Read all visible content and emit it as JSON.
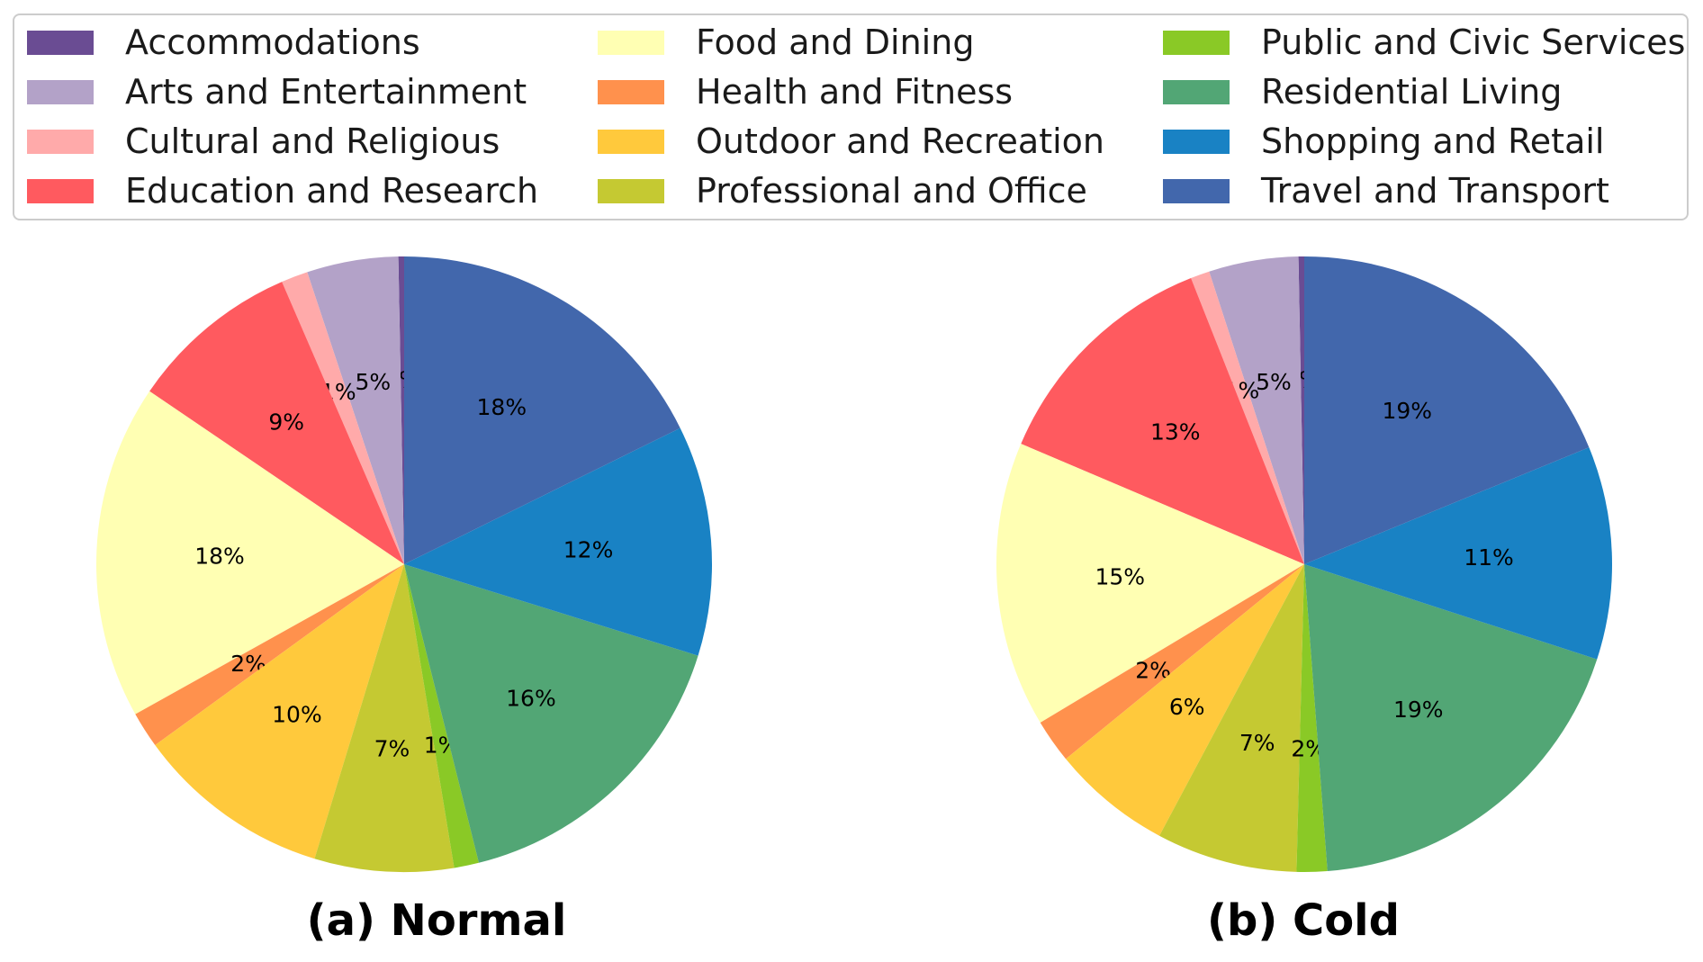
{
  "legend": [
    {
      "label": "Accommodations",
      "color": "#6a4c93"
    },
    {
      "label": "Arts and Entertainment",
      "color": "#b3a2c8"
    },
    {
      "label": "Cultural and Religious",
      "color": "#ffaaaa"
    },
    {
      "label": "Education and Research",
      "color": "#ff5a5f"
    },
    {
      "label": "Food and Dining",
      "color": "#ffffb3"
    },
    {
      "label": "Health and Fitness",
      "color": "#ff914d"
    },
    {
      "label": "Outdoor and Recreation",
      "color": "#ffc93c"
    },
    {
      "label": "Professional and Office",
      "color": "#c5c932"
    },
    {
      "label": "Public and Civic Services",
      "color": "#8ac926"
    },
    {
      "label": "Residential Living",
      "color": "#52a675"
    },
    {
      "label": "Shopping and Retail",
      "color": "#1982c4"
    },
    {
      "label": "Travel and Transport",
      "color": "#4267ac"
    }
  ],
  "chart_data": [
    {
      "type": "pie",
      "title": "(a) Normal",
      "order": "counterclockwise from top",
      "slices": [
        {
          "label": "Accommodations",
          "value": 0.3,
          "text": "0%"
        },
        {
          "label": "Arts and Entertainment",
          "value": 4.8,
          "text": "5%"
        },
        {
          "label": "Cultural and Religious",
          "value": 1.4,
          "text": "1%"
        },
        {
          "label": "Education and Research",
          "value": 9.0,
          "text": "9%"
        },
        {
          "label": "Food and Dining",
          "value": 17.6,
          "text": "18%"
        },
        {
          "label": "Health and Fitness",
          "value": 1.9,
          "text": "2%"
        },
        {
          "label": "Outdoor and Recreation",
          "value": 10.3,
          "text": "10%"
        },
        {
          "label": "Professional and Office",
          "value": 7.3,
          "text": "7%"
        },
        {
          "label": "Public and Civic Services",
          "value": 1.3,
          "text": "1%"
        },
        {
          "label": "Residential Living",
          "value": 16.3,
          "text": "16%"
        },
        {
          "label": "Shopping and Retail",
          "value": 12.1,
          "text": "12%"
        },
        {
          "label": "Travel and Transport",
          "value": 17.7,
          "text": "18%"
        }
      ]
    },
    {
      "type": "pie",
      "title": "(b) Cold",
      "order": "counterclockwise from top",
      "slices": [
        {
          "label": "Accommodations",
          "value": 0.3,
          "text": "0%"
        },
        {
          "label": "Arts and Entertainment",
          "value": 4.7,
          "text": "5%"
        },
        {
          "label": "Cultural and Religious",
          "value": 1.0,
          "text": "1%"
        },
        {
          "label": "Education and Research",
          "value": 12.6,
          "text": "13%"
        },
        {
          "label": "Food and Dining",
          "value": 15.0,
          "text": "15%"
        },
        {
          "label": "Health and Fitness",
          "value": 2.3,
          "text": "2%"
        },
        {
          "label": "Outdoor and Recreation",
          "value": 6.3,
          "text": "6%"
        },
        {
          "label": "Professional and Office",
          "value": 7.4,
          "text": "7%"
        },
        {
          "label": "Public and Civic Services",
          "value": 1.6,
          "text": "2%"
        },
        {
          "label": "Residential Living",
          "value": 18.8,
          "text": "19%"
        },
        {
          "label": "Shopping and Retail",
          "value": 11.2,
          "text": "11%"
        },
        {
          "label": "Travel and Transport",
          "value": 18.8,
          "text": "19%"
        }
      ]
    }
  ]
}
